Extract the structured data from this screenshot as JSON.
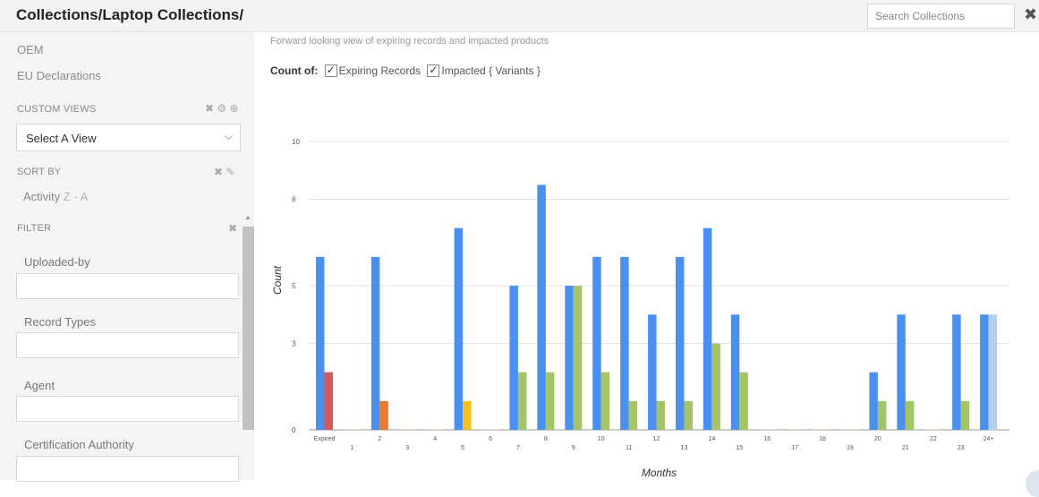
{
  "header": {
    "breadcrumb": "Collections/Laptop Collections/",
    "search_placeholder": "Search Collections",
    "close_glyph": "✖"
  },
  "sidebar": {
    "links": [
      "OEM",
      "EU Declarations"
    ],
    "custom_views": {
      "title": "CUSTOM VIEWS",
      "icons": "✖ ⚙ ⊕",
      "select_value": "Select A View",
      "chevron": "⌵"
    },
    "sort_by": {
      "title": "SORT BY",
      "icons": "✖ ✎",
      "field": "Activity",
      "direction": "Z - A"
    },
    "filter": {
      "title": "FILTER",
      "icon": "✖",
      "fields": [
        {
          "label": "Uploaded-by",
          "value": ""
        },
        {
          "label": "Record Types",
          "value": ""
        },
        {
          "label": "Agent",
          "value": ""
        },
        {
          "label": "Certification Authority",
          "value": ""
        }
      ]
    }
  },
  "main": {
    "description": "Forward looking view of expiring records and impacted products",
    "count_of_label": "Count of:",
    "checkboxes": [
      {
        "label": "Expiring Records",
        "checked": true
      },
      {
        "label": "Impacted { Variants }",
        "checked": true
      }
    ]
  },
  "colors": {
    "expiring": "#4a90f0",
    "impacted": "#a4c466",
    "expired_impacted": "#d35a5a",
    "orange": "#ee7d2b",
    "yellow": "#f7c21c",
    "light_blue": "#b7cfee",
    "grid": "#e4e4e4"
  },
  "chart_data": {
    "type": "bar",
    "xlabel": "Months",
    "ylabel": "Count",
    "ylim": [
      0,
      11
    ],
    "yticks": [
      0,
      3,
      5,
      8,
      10
    ],
    "grid": true,
    "categories": [
      "Expired",
      "1",
      "2",
      "3",
      "4",
      "5",
      "6",
      "7",
      "8",
      "9",
      "10",
      "11",
      "12",
      "13",
      "14",
      "15",
      "16",
      "17",
      "18",
      "19",
      "20",
      "21",
      "22",
      "23",
      "24+"
    ],
    "series": [
      {
        "values": [
          6,
          0,
          6,
          0,
          0,
          7,
          0,
          5,
          8.5,
          5,
          6,
          6,
          4,
          6,
          7,
          4,
          0,
          0,
          0,
          0,
          2,
          4,
          0,
          4,
          4
        ]
      },
      {
        "values": [
          2,
          0,
          1,
          0,
          0,
          1,
          0,
          2,
          2,
          5,
          2,
          1,
          1,
          1,
          3,
          2,
          0,
          0,
          0,
          0,
          1,
          1,
          0,
          1,
          4
        ]
      }
    ],
    "impacted_colors": [
      "#d35a5a",
      "#a4c466",
      "#ee7d2b",
      "#a4c466",
      "#a4c466",
      "#f7c21c",
      "#a4c466",
      "#a4c466",
      "#a4c466",
      "#a4c466",
      "#a4c466",
      "#a4c466",
      "#a4c466",
      "#a4c466",
      "#a4c466",
      "#a4c466",
      "#a4c466",
      "#a4c466",
      "#a4c466",
      "#a4c466",
      "#a4c466",
      "#a4c466",
      "#a4c466",
      "#a4c466",
      "#b7cfee"
    ]
  }
}
